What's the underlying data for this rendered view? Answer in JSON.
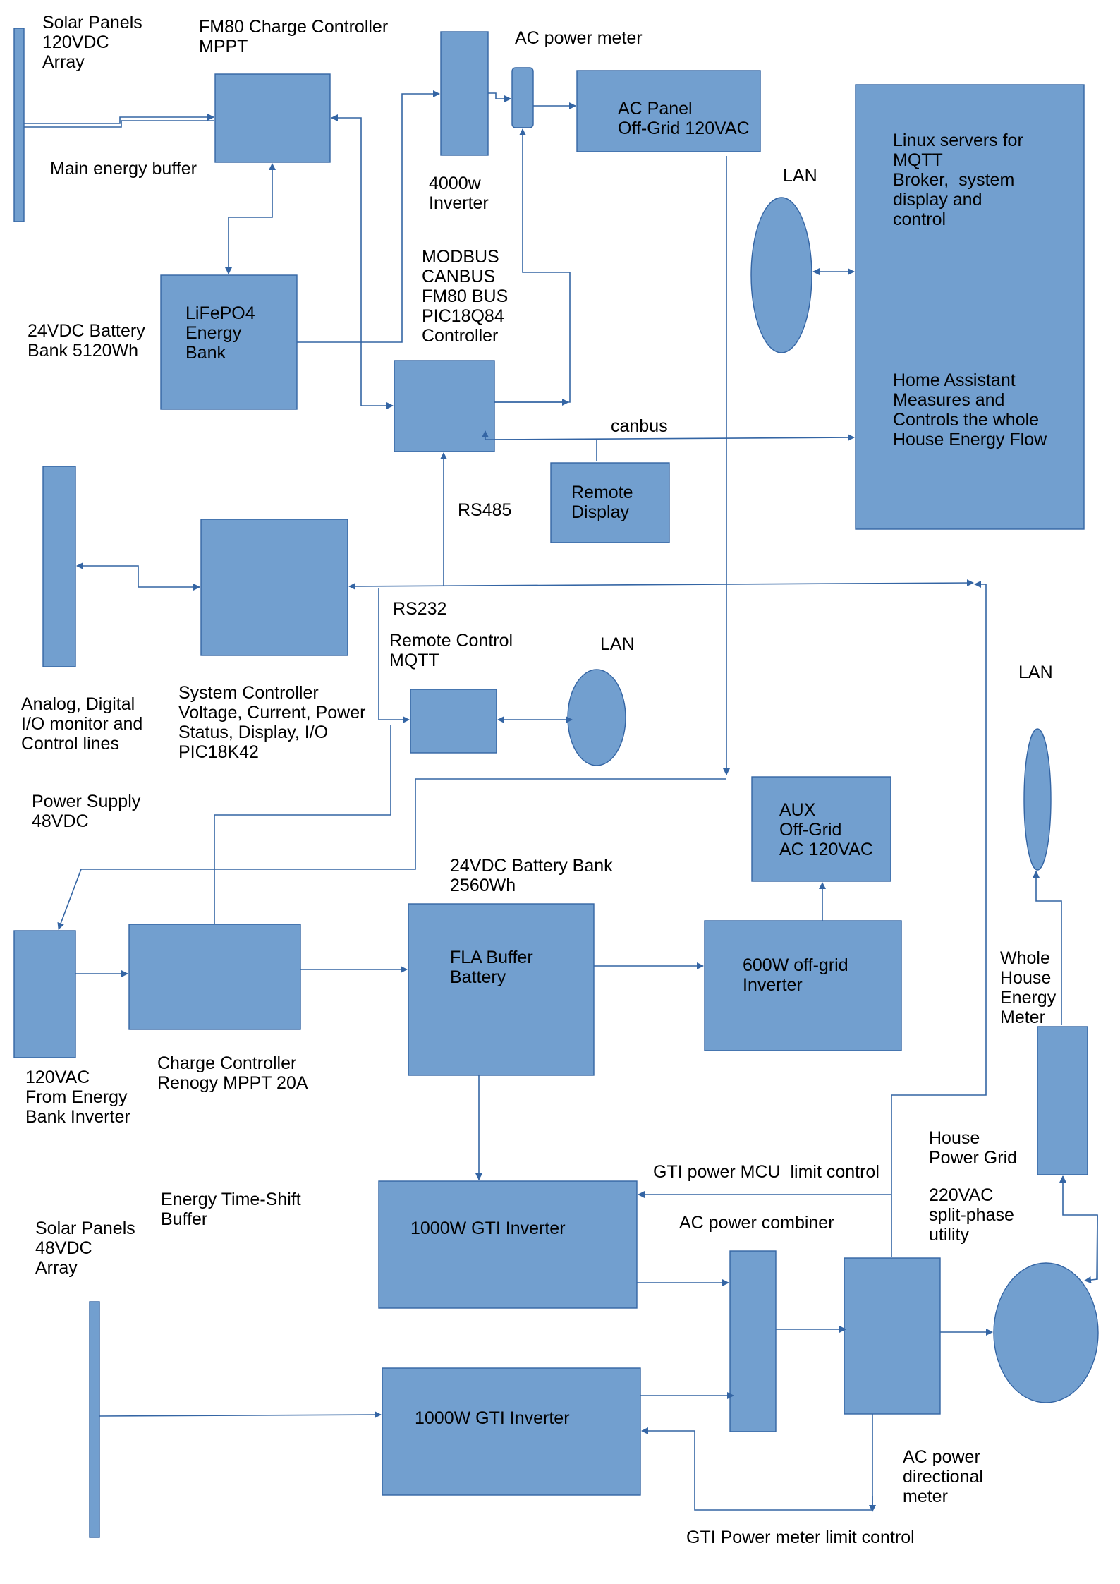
{
  "labels": {
    "solar_120_title": "Solar Panels\n120VDC\nArray",
    "fm80_title": "FM80 Charge Controller\nMPPT",
    "ac_meter_top": "AC power meter",
    "ac_panel": "AC Panel\nOff-Grid 120VAC",
    "main_buffer": "Main energy buffer",
    "inverter_4000": "4000w\nInverter",
    "lan_top": "LAN",
    "linux_servers": "Linux servers for\nMQTT\nBroker,  system\ndisplay and\ncontrol",
    "home_assistant": "Home Assistant\nMeasures and\nControls the whole\nHouse Energy Flow",
    "modbus": "MODBUS\nCANBUS\nFM80 BUS\nPIC18Q84\nController",
    "battery_24_main": "24VDC Battery\nBank 5120Wh",
    "lifepo4": "LiFePO4\nEnergy\nBank",
    "canbus": "canbus",
    "remote_display": "Remote\nDisplay",
    "rs485": "RS485",
    "rs232": "RS232",
    "remote_control": "Remote Control\nMQTT",
    "lan_mid": "LAN",
    "lan_right": "LAN",
    "analog_io": "Analog, Digital\nI/O monitor and\nControl lines",
    "system_controller": "System Controller\nVoltage, Current, Power\nStatus, Display, I/O\nPIC18K42",
    "power_supply": "Power Supply\n48VDC",
    "aux": "AUX\nOff-Grid\nAC 120VAC",
    "battery_24_fla": "24VDC Battery Bank\n2560Wh",
    "fla_buffer": "FLA Buffer\nBattery",
    "inverter_600": "600W off-grid\nInverter",
    "whole_house_meter": "Whole\nHouse\nEnergy\nMeter",
    "from_inverter": "120VAC\nFrom Energy\nBank Inverter",
    "renogy": "Charge Controller\nRenogy MPPT 20A",
    "house_grid": "House\nPower Grid",
    "utility": "220VAC\nsplit-phase\nutility",
    "gti_mcu": "GTI power MCU  limit control",
    "time_shift": "Energy Time-Shift\nBuffer",
    "solar_48_title": "Solar Panels\n48VDC\nArray",
    "gti_1": "1000W GTI Inverter",
    "ac_combiner": "AC power combiner",
    "gti_2": "1000W GTI Inverter",
    "ac_directional": "AC power\ndirectional\nmeter",
    "gti_meter_limit": "GTI Power meter limit control"
  },
  "colors": {
    "box_fill": "#729fcf",
    "box_stroke": "#3465a4",
    "wire": "#3465a4",
    "text": "#000000"
  }
}
